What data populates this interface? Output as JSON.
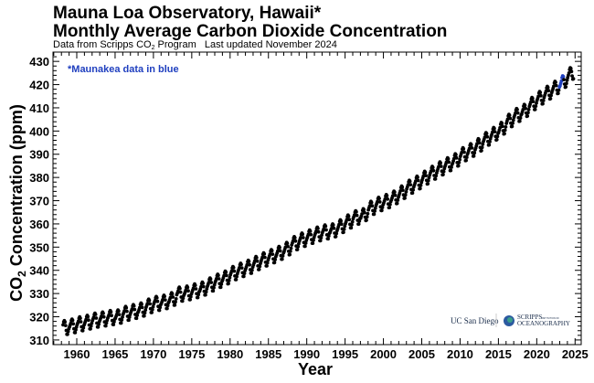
{
  "chart_data": {
    "type": "scatter",
    "title": "Mauna Loa Observatory, Hawaii*",
    "subtitle": "Monthly Average Carbon Dioxide Concentration",
    "source_prefix": "Data from Scripps CO",
    "source_sub": "2",
    "source_suffix": " Program   Last updated November 2024",
    "annotation": "*Maunakea data in blue",
    "xlabel": "Year",
    "ylabel_prefix": "CO",
    "ylabel_sub": "2",
    "ylabel_suffix": " Concentration (ppm)",
    "xlim": [
      1956.9,
      2025.8
    ],
    "ylim": [
      308,
      434
    ],
    "x_ticks": [
      "1960",
      "1965",
      "1970",
      "1975",
      "1980",
      "1985",
      "1990",
      "1995",
      "2000",
      "2005",
      "2010",
      "2015",
      "2020",
      "2025"
    ],
    "y_ticks": [
      "310",
      "320",
      "330",
      "340",
      "350",
      "360",
      "370",
      "380",
      "390",
      "400",
      "410",
      "420",
      "430"
    ],
    "grid": false,
    "colors": {
      "mauna_loa": "#000000",
      "maunakea": "#1f3fbf",
      "annotation": "#1f3fbf"
    },
    "start": "1958-03",
    "end": "2024-10",
    "maunakea_period": [
      "2022-12",
      "2023-06"
    ],
    "annual_mean_ppm": {
      "1958": 315.3,
      "1959": 316.0,
      "1960": 316.9,
      "1961": 317.6,
      "1962": 318.5,
      "1963": 319.0,
      "1964": 319.6,
      "1965": 320.0,
      "1966": 321.4,
      "1967": 322.2,
      "1968": 323.0,
      "1969": 324.6,
      "1970": 325.7,
      "1971": 326.3,
      "1972": 327.5,
      "1973": 329.7,
      "1974": 330.2,
      "1975": 331.1,
      "1976": 332.0,
      "1977": 333.8,
      "1978": 335.4,
      "1979": 336.8,
      "1980": 338.7,
      "1981": 340.1,
      "1982": 341.4,
      "1983": 343.0,
      "1984": 344.6,
      "1985": 346.0,
      "1986": 347.4,
      "1987": 349.2,
      "1988": 351.6,
      "1989": 353.1,
      "1990": 354.4,
      "1991": 355.6,
      "1992": 356.5,
      "1993": 357.1,
      "1994": 358.9,
      "1995": 360.9,
      "1996": 362.7,
      "1997": 363.8,
      "1998": 366.8,
      "1999": 368.5,
      "2000": 369.7,
      "2001": 371.3,
      "2002": 373.5,
      "2003": 375.9,
      "2004": 377.7,
      "2005": 379.8,
      "2006": 381.9,
      "2007": 383.8,
      "2008": 385.6,
      "2009": 387.4,
      "2010": 389.9,
      "2011": 391.7,
      "2012": 393.9,
      "2013": 396.5,
      "2014": 398.7,
      "2015": 401.0,
      "2016": 404.4,
      "2017": 406.8,
      "2018": 408.7,
      "2019": 411.7,
      "2020": 414.2,
      "2021": 416.4,
      "2022": 418.6,
      "2023": 421.1,
      "2024": 424.6
    },
    "monthly_seasonal_offset_ppm": [
      0.0,
      0.7,
      1.4,
      2.6,
      3.1,
      2.5,
      0.9,
      -1.3,
      -3.0,
      -3.1,
      -1.9,
      -0.8
    ]
  },
  "logos": {
    "ucsd": "UC San Diego",
    "scripps_main": "SCRIPPS",
    "scripps_small": "INSTITUTION OF",
    "scripps_sub": "OCEANOGRAPHY"
  }
}
